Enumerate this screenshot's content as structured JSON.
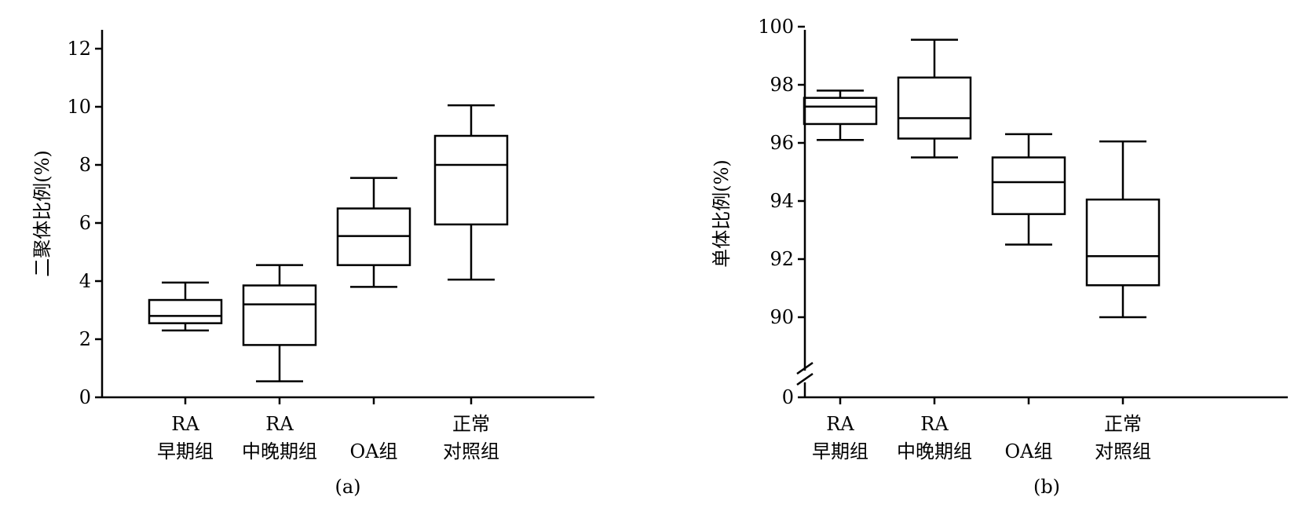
{
  "chart_data": [
    {
      "type": "box",
      "caption": "(a)",
      "ylabel": "二聚体比例(%)",
      "ylim": [
        0,
        12
      ],
      "yticks": [
        "0",
        "2",
        "4",
        "6",
        "8",
        "10",
        "12"
      ],
      "categories": [
        [
          "RA",
          "早期组"
        ],
        [
          "RA",
          "中晚期组"
        ],
        [
          "OA组"
        ],
        [
          "正常",
          "对照组"
        ]
      ],
      "boxes": [
        {
          "min": 2.3,
          "q1": 2.55,
          "median": 2.8,
          "q3": 3.35,
          "max": 3.95
        },
        {
          "min": 0.55,
          "q1": 1.8,
          "median": 3.2,
          "q3": 3.85,
          "max": 4.55
        },
        {
          "min": 3.8,
          "q1": 4.55,
          "median": 5.55,
          "q3": 6.5,
          "max": 7.55
        },
        {
          "min": 4.05,
          "q1": 5.95,
          "median": 8.0,
          "q3": 9.0,
          "max": 10.05
        }
      ]
    },
    {
      "type": "box",
      "caption": "(b)",
      "ylabel": "单体比例(%)",
      "ylim": [
        90,
        100
      ],
      "axis_break": true,
      "yticks": [
        "0",
        "90",
        "92",
        "94",
        "96",
        "98",
        "100"
      ],
      "categories": [
        [
          "RA",
          "早期组"
        ],
        [
          "RA",
          "中晚期组"
        ],
        [
          "OA组"
        ],
        [
          "正常",
          "对照组"
        ]
      ],
      "boxes": [
        {
          "min": 96.1,
          "q1": 96.65,
          "median": 97.25,
          "q3": 97.55,
          "max": 97.8
        },
        {
          "min": 95.5,
          "q1": 96.15,
          "median": 96.85,
          "q3": 98.25,
          "max": 99.55
        },
        {
          "min": 92.5,
          "q1": 93.55,
          "median": 94.65,
          "q3": 95.5,
          "max": 96.3
        },
        {
          "min": 90.0,
          "q1": 91.1,
          "median": 92.1,
          "q3": 94.05,
          "max": 96.05
        }
      ]
    }
  ]
}
